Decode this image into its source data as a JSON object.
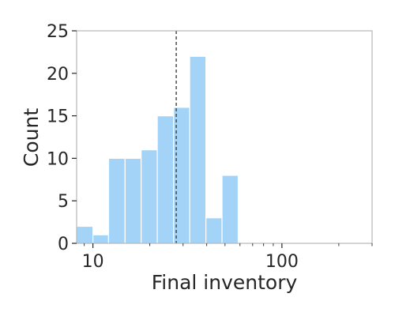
{
  "chart_data": {
    "type": "histogram",
    "title": "",
    "xlabel": "Final inventory",
    "ylabel": "Count",
    "x_scale": "log",
    "xlim": [
      8.2,
      300
    ],
    "ylim": [
      0,
      25
    ],
    "x_ticks": [
      {
        "value": 10,
        "label": "10"
      },
      {
        "value": 100,
        "label": "100"
      }
    ],
    "y_ticks": [
      {
        "value": 0,
        "label": "0"
      },
      {
        "value": 5,
        "label": "5"
      },
      {
        "value": 10,
        "label": "10"
      },
      {
        "value": 15,
        "label": "15"
      },
      {
        "value": 20,
        "label": "20"
      },
      {
        "value": 25,
        "label": "25"
      }
    ],
    "bins": [
      {
        "x0": 8.2,
        "x1": 10.0,
        "count": 2
      },
      {
        "x0": 10.0,
        "x1": 12.1,
        "count": 1
      },
      {
        "x0": 12.1,
        "x1": 14.8,
        "count": 10
      },
      {
        "x0": 14.8,
        "x1": 18.0,
        "count": 10
      },
      {
        "x0": 18.0,
        "x1": 21.9,
        "count": 11
      },
      {
        "x0": 21.9,
        "x1": 26.7,
        "count": 15
      },
      {
        "x0": 26.7,
        "x1": 32.5,
        "count": 16
      },
      {
        "x0": 32.5,
        "x1": 39.6,
        "count": 22
      },
      {
        "x0": 39.6,
        "x1": 48.2,
        "count": 3
      },
      {
        "x0": 48.2,
        "x1": 58.7,
        "count": 8
      }
    ],
    "reference_line": {
      "x": 27.6,
      "style": "dashed"
    },
    "grid": false,
    "legend": "none",
    "colors": {
      "bar": "#a3d4f7",
      "bar_edge": "#ffffff",
      "ref_line": "#404040",
      "axis": "#aaaaaa"
    }
  }
}
